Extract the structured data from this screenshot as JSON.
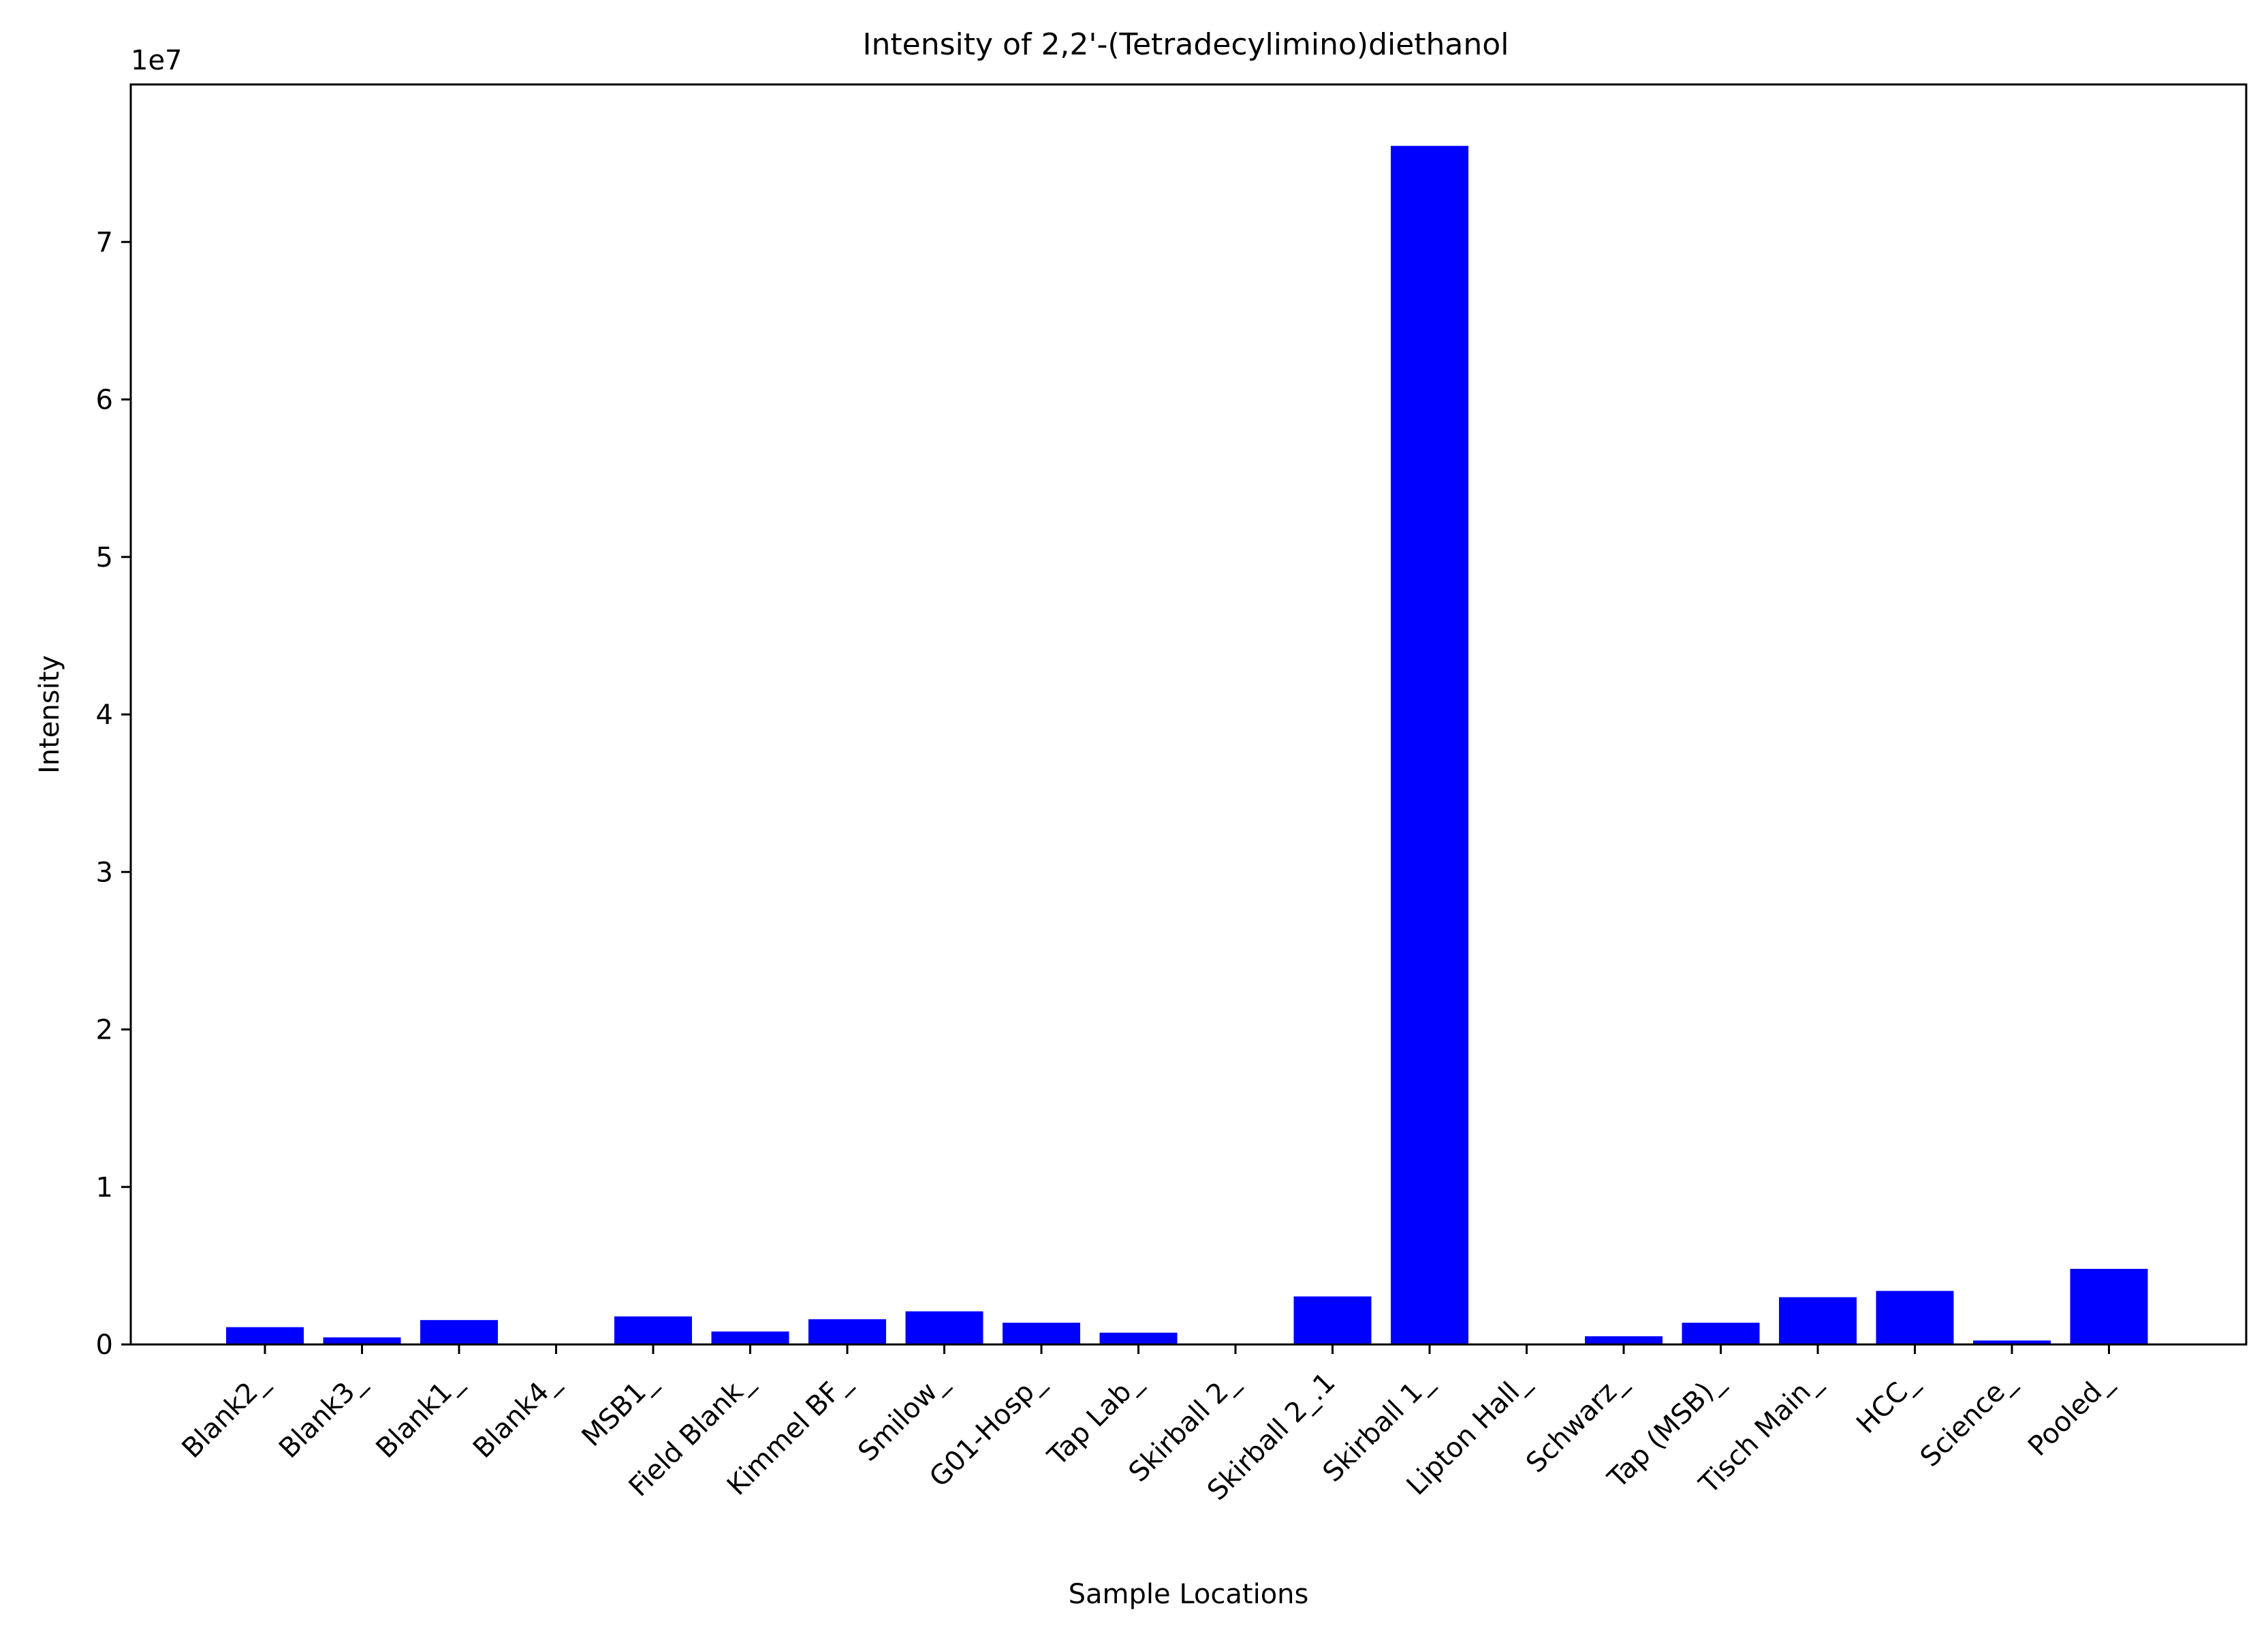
{
  "chart_data": {
    "type": "bar",
    "title": "Intensity of 2,2'-(Tetradecylimino)diethanol",
    "xlabel": "Sample Locations",
    "ylabel": "Intensity",
    "y_offset_label": "1e7",
    "y_scale": 10000000,
    "ylim": [
      0,
      80000000
    ],
    "yticks": [
      0,
      10000000,
      20000000,
      30000000,
      40000000,
      50000000,
      60000000,
      70000000
    ],
    "ytick_labels": [
      "0",
      "1",
      "2",
      "3",
      "4",
      "5",
      "6",
      "7"
    ],
    "grid": false,
    "legend": "none",
    "bar_color": "#0000ff",
    "categories": [
      "Blank2_",
      "Blank3_",
      "Blank1_",
      "Blank4_",
      "MSB1_",
      "Field Blank_",
      "Kimmel BF_",
      "Smilow_",
      "G01-Hosp_",
      "Tap Lab_",
      "Skirball 2_",
      "Skirball 2_.1",
      "Skirball 1_",
      "Lipton Hall_",
      "Schwarz_",
      "Tap (MSB)_",
      "Tisch Main_",
      "HCC_",
      "Science_",
      "Pooled_"
    ],
    "values": [
      1100000,
      450000,
      1550000,
      0,
      1780000,
      820000,
      1600000,
      2100000,
      1380000,
      750000,
      0,
      3050000,
      76100000,
      0,
      520000,
      1380000,
      3000000,
      3400000,
      250000,
      4800000
    ]
  }
}
